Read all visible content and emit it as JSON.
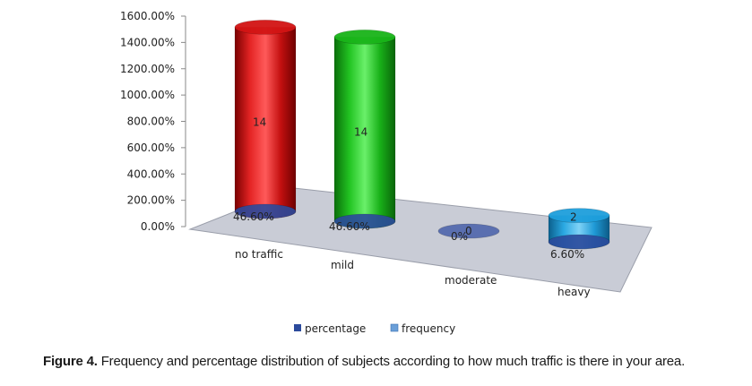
{
  "caption": {
    "label": "Figure 4.",
    "text": "Frequency and percentage distribution of subjects according to how much traffic is there in your area."
  },
  "colors": {
    "no_traffic": "#d21414",
    "mild": "#19b419",
    "moderate": "#5a6fb0",
    "heavy": "#1e9fdc",
    "percentage_legend": "#2b4a9c",
    "frequency_legend": "#6a9fd8",
    "floor": "#c9ccd6"
  },
  "chart_data": {
    "type": "bar",
    "categories": [
      "no traffic",
      "mild",
      "moderate",
      "heavy"
    ],
    "series": [
      {
        "name": "percentage",
        "values": [
          46.6,
          46.6,
          0,
          6.6
        ],
        "labels": [
          "46.60%",
          "46.60%",
          "0%",
          "6.60%"
        ]
      },
      {
        "name": "frequency",
        "values": [
          14,
          14,
          0,
          2
        ],
        "labels": [
          "14",
          "14",
          "0",
          "2"
        ]
      }
    ],
    "y_tick_labels": [
      "0.00%",
      "200.00%",
      "400.00%",
      "600.00%",
      "800.00%",
      "1000.00%",
      "1200.00%",
      "1400.00%",
      "1600.00%"
    ],
    "ylim": [
      0,
      1600
    ],
    "y_unit": "%",
    "frequency_plotted_as_percent": true,
    "legend_position": "bottom",
    "three_d": true,
    "xlabel": "",
    "ylabel": "",
    "title": ""
  }
}
